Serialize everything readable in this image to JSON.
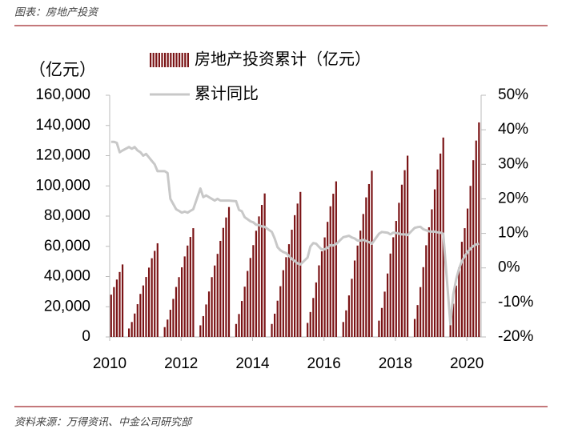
{
  "header": {
    "title": "图表：房地产投资"
  },
  "footer": {
    "source": "资料来源：万得资讯、中金公司研究部"
  },
  "chart_data": {
    "type": "bar_line",
    "y_axis_label": "（亿元）",
    "x": [
      2010.04,
      2010.12,
      2010.2,
      2010.28,
      2010.36,
      2010.54,
      2010.62,
      2010.7,
      2010.78,
      2010.86,
      2010.94,
      2011.02,
      2011.1,
      2011.18,
      2011.26,
      2011.34,
      2011.54,
      2011.62,
      2011.7,
      2011.78,
      2011.86,
      2011.94,
      2012.02,
      2012.1,
      2012.18,
      2012.26,
      2012.34,
      2012.54,
      2012.62,
      2012.7,
      2012.78,
      2012.86,
      2012.94,
      2013.02,
      2013.1,
      2013.18,
      2013.26,
      2013.34,
      2013.54,
      2013.62,
      2013.7,
      2013.78,
      2013.86,
      2013.94,
      2014.02,
      2014.1,
      2014.18,
      2014.26,
      2014.34,
      2014.54,
      2014.62,
      2014.7,
      2014.78,
      2014.86,
      2014.94,
      2015.02,
      2015.1,
      2015.18,
      2015.26,
      2015.34,
      2015.54,
      2015.62,
      2015.7,
      2015.78,
      2015.86,
      2015.94,
      2016.02,
      2016.1,
      2016.18,
      2016.26,
      2016.34,
      2016.54,
      2016.62,
      2016.7,
      2016.78,
      2016.86,
      2016.94,
      2017.02,
      2017.1,
      2017.18,
      2017.26,
      2017.34,
      2017.54,
      2017.62,
      2017.7,
      2017.78,
      2017.86,
      2017.94,
      2018.02,
      2018.1,
      2018.18,
      2018.26,
      2018.34,
      2018.54,
      2018.62,
      2018.7,
      2018.78,
      2018.86,
      2018.94,
      2019.02,
      2019.1,
      2019.18,
      2019.26,
      2019.34,
      2019.54,
      2019.62,
      2019.7,
      2019.78,
      2019.86,
      2019.94,
      2020.02,
      2020.1,
      2020.18,
      2020.26,
      2020.34
    ],
    "series": [
      {
        "name": "房地产投资累计（亿元）",
        "color": "#7b1416",
        "kind": "bar",
        "values": [
          28000,
          33000,
          38000,
          43000,
          48000,
          5600,
          9900,
          15500,
          21700,
          28500,
          34100,
          39700,
          45900,
          52100,
          57000,
          62000,
          6500,
          11500,
          18000,
          25200,
          33100,
          39600,
          46100,
          53300,
          60500,
          66200,
          72000,
          7700,
          13800,
          21500,
          30100,
          39600,
          47300,
          55000,
          63600,
          72200,
          79100,
          86000,
          8600,
          15200,
          23800,
          33300,
          43700,
          52300,
          60800,
          70300,
          79800,
          87400,
          95000,
          8600,
          15400,
          24000,
          33600,
          44200,
          52800,
          61400,
          71000,
          80600,
          88300,
          96000,
          9300,
          16500,
          25800,
          36100,
          47400,
          56700,
          65900,
          76200,
          86500,
          94800,
          103000,
          9900,
          17600,
          27500,
          38500,
          50600,
          60500,
          70400,
          81400,
          92400,
          101200,
          110000,
          10800,
          19200,
          30000,
          42000,
          55200,
          66000,
          76800,
          88800,
          100800,
          110400,
          120000,
          11900,
          21100,
          33000,
          46200,
          60700,
          72600,
          84500,
          97700,
          110900,
          121400,
          132000,
          10000,
          22000,
          34000,
          46000,
          63000,
          72000,
          85000,
          100000,
          117000,
          130000,
          142000
        ]
      },
      {
        "name": "累计同比",
        "color": "#c8c8c8",
        "kind": "line",
        "axis": "y2",
        "values": [
          36.5,
          36.5,
          36.2,
          33.5,
          34.0,
          35,
          34.5,
          35,
          34,
          33.5,
          32.5,
          33,
          32,
          31,
          30,
          28,
          28,
          27.5,
          20,
          18.5,
          17,
          16.5,
          16,
          16.3,
          16,
          16.5,
          17,
          23,
          20.5,
          21,
          20.5,
          20,
          19.5,
          20,
          19.5,
          19.5,
          19.5,
          19.5,
          19.3,
          16.8,
          16.4,
          14.7,
          14.1,
          13.5,
          13.2,
          12.5,
          12.4,
          12.0,
          11.9,
          10.4,
          8.5,
          6.0,
          5.1,
          4.6,
          4.3,
          3.5,
          2.6,
          2.0,
          1.3,
          1.0,
          3.0,
          6.2,
          7.2,
          7.0,
          6.1,
          5.3,
          5.4,
          5.8,
          6.6,
          6.5,
          6.9,
          8.9,
          9.1,
          9.3,
          8.8,
          8.5,
          7.9,
          7.9,
          8.1,
          7.8,
          7.5,
          7.0,
          9.9,
          10.4,
          10.3,
          10.2,
          9.7,
          10.2,
          10.1,
          9.9,
          9.7,
          9.7,
          9.5,
          11.6,
          11.8,
          11.9,
          11.2,
          10.9,
          10.6,
          10.5,
          10.5,
          10.3,
          10.2,
          9.9,
          -16.3,
          -7.7,
          -3.3,
          -0.3,
          1.9,
          3.4,
          4.6,
          5.6,
          6.3,
          6.8,
          7.0
        ]
      }
    ],
    "xlim": [
      2010,
      2020.4
    ],
    "xticks": [
      2010,
      2012,
      2014,
      2016,
      2018,
      2020
    ],
    "ylim": [
      0,
      160000
    ],
    "yticks": [
      0,
      {
        "value": 20000,
        "label": "20,000"
      },
      {
        "value": 40000,
        "label": "40,000"
      },
      {
        "value": 60000,
        "label": "60,000"
      },
      {
        "value": 80000,
        "label": "80,000"
      },
      {
        "value": 100000,
        "label": "100,000"
      },
      {
        "value": 120000,
        "label": "120,000"
      },
      {
        "value": 140000,
        "label": "140,000"
      },
      {
        "value": 160000,
        "label": "160,000"
      }
    ],
    "y2lim": [
      -20,
      50
    ],
    "y2ticks": [
      {
        "value": -20,
        "label": "-20%"
      },
      {
        "value": -10,
        "label": "-10%"
      },
      {
        "value": 0,
        "label": "0%"
      },
      {
        "value": 10,
        "label": "10%"
      },
      {
        "value": 20,
        "label": "20%"
      },
      {
        "value": 30,
        "label": "30%"
      },
      {
        "value": 40,
        "label": "40%"
      },
      {
        "value": 50,
        "label": "50%"
      }
    ]
  }
}
